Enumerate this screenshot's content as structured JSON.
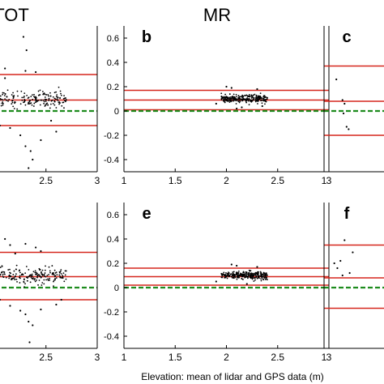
{
  "figure": {
    "column_titles": [
      "TOT",
      "MR"
    ],
    "xlabel": "Elevation: mean of lidar and GPS data (m)"
  },
  "chart_data": [
    {
      "type": "scatter",
      "panel": "a",
      "panel_label": "",
      "column": "TOT",
      "row": "top",
      "xlim": [
        1,
        3
      ],
      "ylim": [
        -0.5,
        0.7
      ],
      "x_ticks": [
        2,
        2.5,
        3
      ],
      "x_tick_labels": [
        "2",
        "2.5",
        "3"
      ],
      "y_ticks": [],
      "y_tick_labels": [],
      "lines": {
        "upper": 0.3,
        "mean": 0.09,
        "lower": -0.12,
        "zero": 0.0
      },
      "cloud": [
        {
          "x_min": 1.7,
          "x_max": 2.7,
          "center": 0.1,
          "spread": 0.06
        }
      ],
      "points": [
        [
          1.9,
          0.62
        ],
        [
          1.95,
          0.6
        ],
        [
          2.28,
          0.61
        ],
        [
          2.31,
          0.5
        ],
        [
          2.4,
          0.32
        ],
        [
          2.3,
          0.33
        ],
        [
          1.98,
          0.38
        ],
        [
          2.1,
          0.35
        ],
        [
          2.0,
          -0.08
        ],
        [
          2.05,
          -0.12
        ],
        [
          2.15,
          -0.14
        ],
        [
          2.25,
          -0.2
        ],
        [
          2.3,
          -0.29
        ],
        [
          2.35,
          -0.33
        ],
        [
          2.37,
          -0.4
        ],
        [
          2.33,
          -0.47
        ],
        [
          2.45,
          -0.24
        ],
        [
          2.6,
          -0.17
        ],
        [
          2.55,
          -0.08
        ],
        [
          2.1,
          0.27
        ]
      ]
    },
    {
      "type": "scatter",
      "panel": "b",
      "panel_label": "b",
      "column": "MR",
      "row": "top",
      "xlim": [
        1,
        3
      ],
      "ylim": [
        -0.5,
        0.7
      ],
      "x_ticks": [
        1,
        1.5,
        2,
        2.5,
        3
      ],
      "x_tick_labels": [
        "1",
        "1.5",
        "2",
        "2.5",
        "3"
      ],
      "y_ticks": [
        -0.4,
        -0.2,
        0,
        0.2,
        0.4,
        0.6
      ],
      "y_tick_labels": [
        "-0.4",
        "-0.2",
        "0",
        "0.2",
        "0.4",
        "0.6"
      ],
      "lines": {
        "upper": 0.17,
        "mean": 0.09,
        "lower": 0.01,
        "zero": 0.0
      },
      "cloud": [
        {
          "x_min": 1.95,
          "x_max": 2.4,
          "center": 0.1,
          "spread": 0.03
        }
      ],
      "points": [
        [
          1.9,
          0.06
        ],
        [
          2.0,
          0.2
        ],
        [
          2.05,
          0.19
        ],
        [
          2.1,
          0.02
        ],
        [
          2.15,
          0.03
        ],
        [
          2.3,
          0.18
        ],
        [
          2.35,
          0.04
        ]
      ]
    },
    {
      "type": "scatter",
      "panel": "c",
      "panel_label": "c",
      "column": "",
      "row": "top",
      "xlim": [
        1,
        3
      ],
      "ylim": [
        -0.5,
        0.7
      ],
      "x_ticks": [
        1
      ],
      "x_tick_labels": [
        "1"
      ],
      "y_ticks": [],
      "y_tick_labels": [],
      "lines": {
        "upper": 0.37,
        "mean": 0.08,
        "lower": -0.2,
        "zero": 0.0
      },
      "cloud": [],
      "points": [
        [
          1.12,
          0.26
        ],
        [
          1.18,
          0.09
        ],
        [
          1.2,
          0.06
        ],
        [
          1.22,
          -0.13
        ],
        [
          1.24,
          -0.15
        ],
        [
          1.19,
          -0.02
        ]
      ]
    },
    {
      "type": "scatter",
      "panel": "d",
      "panel_label": "",
      "column": "TOT",
      "row": "bottom",
      "xlim": [
        1,
        3
      ],
      "ylim": [
        -0.5,
        0.7
      ],
      "x_ticks": [
        2,
        2.5,
        3
      ],
      "x_tick_labels": [
        "2",
        "2.5",
        "3"
      ],
      "y_ticks": [],
      "y_tick_labels": [],
      "lines": {
        "upper": 0.29,
        "mean": 0.09,
        "lower": -0.1,
        "zero": 0.0
      },
      "cloud": [
        {
          "x_min": 1.7,
          "x_max": 2.7,
          "center": 0.1,
          "spread": 0.06
        }
      ],
      "points": [
        [
          1.9,
          0.45
        ],
        [
          2.0,
          0.43
        ],
        [
          2.1,
          0.4
        ],
        [
          2.15,
          0.35
        ],
        [
          2.3,
          0.36
        ],
        [
          2.4,
          0.33
        ],
        [
          2.05,
          -0.1
        ],
        [
          2.15,
          -0.15
        ],
        [
          2.25,
          -0.19
        ],
        [
          2.3,
          -0.22
        ],
        [
          2.33,
          -0.28
        ],
        [
          2.37,
          -0.31
        ],
        [
          2.34,
          -0.45
        ],
        [
          2.45,
          -0.18
        ],
        [
          2.6,
          -0.14
        ],
        [
          2.65,
          -0.1
        ],
        [
          2.2,
          0.28
        ],
        [
          2.45,
          0.3
        ]
      ]
    },
    {
      "type": "scatter",
      "panel": "e",
      "panel_label": "e",
      "column": "MR",
      "row": "bottom",
      "xlim": [
        1,
        3
      ],
      "ylim": [
        -0.5,
        0.7
      ],
      "x_ticks": [
        1,
        1.5,
        2,
        2.5,
        3
      ],
      "x_tick_labels": [
        "1",
        "1.5",
        "2",
        "2.5",
        "3"
      ],
      "y_ticks": [
        -0.4,
        -0.2,
        0,
        0.2,
        0.4,
        0.6
      ],
      "y_tick_labels": [
        "-0.4",
        "-0.2",
        "0",
        "0.2",
        "0.4",
        "0.6"
      ],
      "lines": {
        "upper": 0.16,
        "mean": 0.09,
        "lower": 0.02,
        "zero": 0.0
      },
      "cloud": [
        {
          "x_min": 1.95,
          "x_max": 2.4,
          "center": 0.1,
          "spread": 0.03
        }
      ],
      "points": [
        [
          1.9,
          0.05
        ],
        [
          2.05,
          0.19
        ],
        [
          2.1,
          0.18
        ],
        [
          2.2,
          0.03
        ],
        [
          2.3,
          0.17
        ]
      ]
    },
    {
      "type": "scatter",
      "panel": "f",
      "panel_label": "f",
      "column": "",
      "row": "bottom",
      "xlim": [
        1,
        3
      ],
      "ylim": [
        -0.5,
        0.7
      ],
      "x_ticks": [
        1
      ],
      "x_tick_labels": [
        "1"
      ],
      "y_ticks": [],
      "y_tick_labels": [],
      "lines": {
        "upper": 0.35,
        "mean": 0.08,
        "lower": -0.17,
        "zero": 0.0
      },
      "cloud": [],
      "points": [
        [
          1.2,
          0.39
        ],
        [
          1.1,
          0.2
        ],
        [
          1.13,
          0.16
        ],
        [
          1.16,
          0.22
        ],
        [
          1.25,
          0.12
        ],
        [
          1.28,
          0.29
        ],
        [
          1.18,
          0.1
        ]
      ]
    }
  ],
  "colors": {
    "limit_line": "#d6271d",
    "zero_line": "#1e8c1e",
    "points": "#000000",
    "axis": "#000000"
  }
}
